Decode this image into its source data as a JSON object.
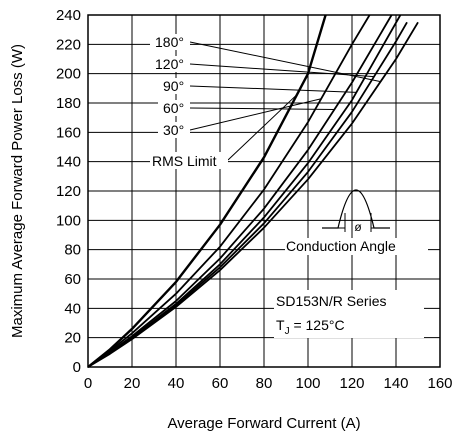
{
  "chart_data": {
    "type": "line",
    "xlabel": "Average Forward Current (A)",
    "ylabel": "Maximum Average Forward Power Loss (W)",
    "xlim": [
      0,
      160
    ],
    "ylim": [
      0,
      240
    ],
    "x_ticks": [
      "0",
      "20",
      "40",
      "60",
      "80",
      "100",
      "120",
      "140",
      "160"
    ],
    "y_ticks": [
      "0",
      "20",
      "40",
      "60",
      "80",
      "100",
      "120",
      "140",
      "160",
      "180",
      "200",
      "220",
      "240"
    ],
    "grid": true,
    "series": [
      {
        "name": "RMS Limit",
        "x": [
          0,
          10,
          20,
          40,
          60,
          80,
          100,
          108
        ],
        "y": [
          0,
          12,
          26,
          58,
          97,
          143,
          200,
          240
        ]
      },
      {
        "name": "30°",
        "x": [
          0,
          10,
          20,
          40,
          60,
          80,
          100,
          120,
          128
        ],
        "y": [
          0,
          11,
          23,
          50,
          82,
          121,
          167,
          220,
          240
        ]
      },
      {
        "name": "60°",
        "x": [
          0,
          10,
          20,
          40,
          60,
          80,
          100,
          120,
          138
        ],
        "y": [
          0,
          10,
          21,
          45,
          74,
          108,
          148,
          194,
          240
        ]
      },
      {
        "name": "90°",
        "x": [
          0,
          10,
          20,
          40,
          60,
          80,
          100,
          120,
          142
        ],
        "y": [
          0,
          10,
          20,
          43,
          70,
          102,
          139,
          182,
          240
        ]
      },
      {
        "name": "120°",
        "x": [
          0,
          10,
          20,
          40,
          60,
          80,
          100,
          120,
          140,
          145
        ],
        "y": [
          0,
          10,
          20,
          42,
          68,
          98,
          133,
          174,
          222,
          235
        ]
      },
      {
        "name": "180°",
        "x": [
          0,
          10,
          20,
          40,
          60,
          80,
          100,
          120,
          140,
          150
        ],
        "y": [
          0,
          9,
          19,
          41,
          66,
          95,
          128,
          166,
          210,
          235
        ]
      }
    ],
    "annotations": {
      "series_labels": [
        "180°",
        "120°",
        "90°",
        "60°",
        "30°",
        "RMS Limit"
      ],
      "waveform_label": "Conduction Angle",
      "waveform_symbol": "ø",
      "series_name": "SD153N/R Series",
      "tj_label": "T",
      "tj_sub": "J",
      "tj_value": " = 125°C"
    }
  }
}
